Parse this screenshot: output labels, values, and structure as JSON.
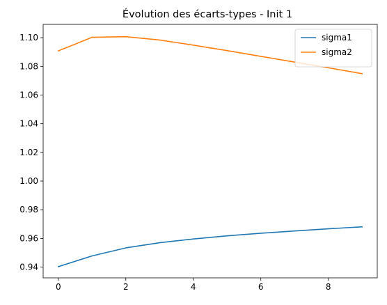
{
  "chart_data": {
    "type": "line",
    "title": "Évolution des écarts-types - Init 1",
    "xlabel": "",
    "ylabel": "",
    "x": [
      0,
      1,
      2,
      3,
      4,
      5,
      6,
      7,
      8,
      9
    ],
    "xlim": [
      -0.45,
      9.45
    ],
    "ylim": [
      0.9325,
      1.1093
    ],
    "xticks": [
      0,
      2,
      4,
      6,
      8
    ],
    "yticks": [
      0.94,
      0.96,
      0.98,
      1.0,
      1.02,
      1.04,
      1.06,
      1.08,
      1.1
    ],
    "xtick_labels": [
      "0",
      "2",
      "4",
      "6",
      "8"
    ],
    "ytick_labels": [
      "0.94",
      "0.96",
      "0.98",
      "1.00",
      "1.02",
      "1.04",
      "1.06",
      "1.08",
      "1.10"
    ],
    "grid": false,
    "legend_position": "top-right",
    "series": [
      {
        "name": "sigma1",
        "color": "#1f77b4",
        "values": [
          0.9403,
          0.9478,
          0.9534,
          0.957,
          0.9596,
          0.9618,
          0.9636,
          0.9652,
          0.9667,
          0.9681
        ]
      },
      {
        "name": "sigma2",
        "color": "#ff7f0e",
        "values": [
          1.0908,
          1.1003,
          1.1007,
          1.0984,
          1.0948,
          1.091,
          1.087,
          1.083,
          1.079,
          1.0749
        ]
      }
    ]
  }
}
